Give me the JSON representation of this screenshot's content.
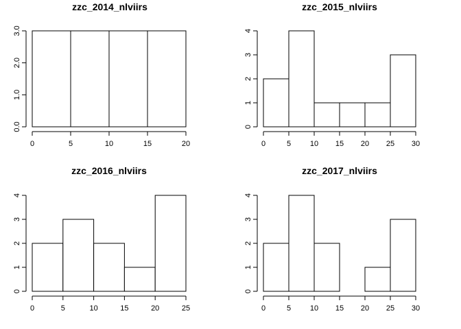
{
  "chart_data": [
    {
      "type": "bar",
      "title": "zzc_2014_nlviirs",
      "xlabel": "",
      "ylabel": "",
      "bins": [
        [
          0,
          5
        ],
        [
          5,
          10
        ],
        [
          10,
          15
        ],
        [
          15,
          20
        ]
      ],
      "values": [
        3,
        3,
        3,
        3
      ],
      "xticks": [
        0,
        5,
        10,
        15,
        20
      ],
      "xtick_labels": [
        "0",
        "5",
        "10",
        "15",
        "20"
      ],
      "yticks": [
        0,
        1,
        2,
        3
      ],
      "ytick_labels": [
        "0.0",
        "1.0",
        "2.0",
        "3.0"
      ],
      "xlim": [
        0,
        20
      ],
      "ylim": [
        0,
        3
      ],
      "grid": false
    },
    {
      "type": "bar",
      "title": "zzc_2015_nlviirs",
      "xlabel": "",
      "ylabel": "",
      "bins": [
        [
          0,
          5
        ],
        [
          5,
          10
        ],
        [
          10,
          15
        ],
        [
          15,
          20
        ],
        [
          20,
          25
        ],
        [
          25,
          30
        ]
      ],
      "values": [
        2,
        4,
        1,
        1,
        1,
        3
      ],
      "xticks": [
        0,
        5,
        10,
        15,
        20,
        25,
        30
      ],
      "xtick_labels": [
        "0",
        "5",
        "10",
        "15",
        "20",
        "25",
        "30"
      ],
      "yticks": [
        0,
        1,
        2,
        3,
        4
      ],
      "ytick_labels": [
        "0",
        "1",
        "2",
        "3",
        "4"
      ],
      "xlim": [
        0,
        30
      ],
      "ylim": [
        0,
        4
      ],
      "grid": false
    },
    {
      "type": "bar",
      "title": "zzc_2016_nlviirs",
      "xlabel": "",
      "ylabel": "",
      "bins": [
        [
          0,
          5
        ],
        [
          5,
          10
        ],
        [
          10,
          15
        ],
        [
          15,
          20
        ],
        [
          20,
          25
        ]
      ],
      "values": [
        2,
        3,
        2,
        1,
        4
      ],
      "xticks": [
        0,
        5,
        10,
        15,
        20,
        25
      ],
      "xtick_labels": [
        "0",
        "5",
        "10",
        "15",
        "20",
        "25"
      ],
      "yticks": [
        0,
        1,
        2,
        3,
        4
      ],
      "ytick_labels": [
        "0",
        "1",
        "2",
        "3",
        "4"
      ],
      "xlim": [
        0,
        25
      ],
      "ylim": [
        0,
        4
      ],
      "grid": false
    },
    {
      "type": "bar",
      "title": "zzc_2017_nlviirs",
      "xlabel": "",
      "ylabel": "",
      "bins": [
        [
          0,
          5
        ],
        [
          5,
          10
        ],
        [
          10,
          15
        ],
        [
          15,
          20
        ],
        [
          20,
          25
        ],
        [
          25,
          30
        ]
      ],
      "values": [
        2,
        4,
        2,
        0,
        1,
        3
      ],
      "xticks": [
        0,
        5,
        10,
        15,
        20,
        25,
        30
      ],
      "xtick_labels": [
        "0",
        "5",
        "10",
        "15",
        "20",
        "25",
        "30"
      ],
      "yticks": [
        0,
        1,
        2,
        3,
        4
      ],
      "ytick_labels": [
        "0",
        "1",
        "2",
        "3",
        "4"
      ],
      "xlim": [
        0,
        30
      ],
      "ylim": [
        0,
        4
      ],
      "grid": false
    }
  ]
}
